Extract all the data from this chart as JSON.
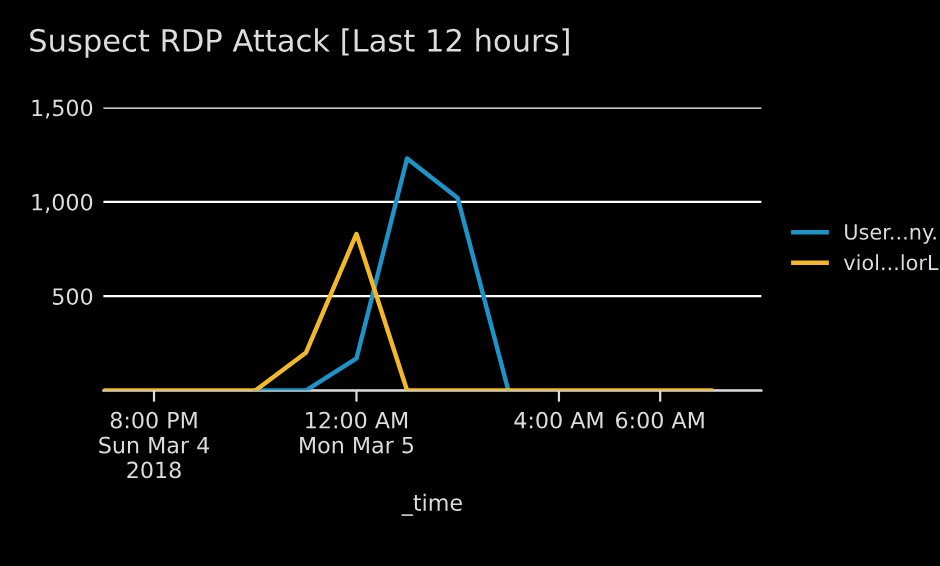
{
  "chart_data": {
    "type": "line",
    "title": "Suspect RDP Attack [Last 12 hours]",
    "xlabel": "_time",
    "x": [
      "2018-03-04T19:00",
      "2018-03-04T20:00",
      "2018-03-04T21:00",
      "2018-03-04T22:00",
      "2018-03-04T23:00",
      "2018-03-05T00:00",
      "2018-03-05T01:00",
      "2018-03-05T02:00",
      "2018-03-05T03:00",
      "2018-03-05T04:00",
      "2018-03-05T05:00",
      "2018-03-05T06:00",
      "2018-03-05T07:00"
    ],
    "series": [
      {
        "name": "User...ny.",
        "color": "#1e93c6",
        "values": [
          null,
          null,
          null,
          0,
          0,
          170,
          1230,
          1020,
          0,
          null,
          null,
          null,
          null
        ]
      },
      {
        "name": "viol...lorL",
        "color": "#f2b827",
        "values": [
          0,
          0,
          0,
          0,
          200,
          830,
          0,
          0,
          0,
          0,
          0,
          0,
          0
        ]
      }
    ],
    "xlim": [
      "2018-03-04T19:00",
      "2018-03-05T08:00"
    ],
    "xticks": [
      {
        "value": "2018-03-04T20:00",
        "label": "8:00 PM\nSun Mar 4\n2018"
      },
      {
        "value": "2018-03-05T00:00",
        "label": "12:00 AM\nMon Mar 5"
      },
      {
        "value": "2018-03-05T04:00",
        "label": "4:00 AM"
      },
      {
        "value": "2018-03-05T06:00",
        "label": "6:00 AM"
      }
    ],
    "ylim": [
      0,
      1500
    ],
    "yticks": [
      {
        "value": 0,
        "label": null
      },
      {
        "value": 500,
        "label": "500"
      },
      {
        "value": 1000,
        "label": "1,000"
      },
      {
        "value": 1500,
        "label": "1,500"
      }
    ],
    "grid": "y",
    "legend": "right",
    "marker": "none",
    "line_style": "solid"
  }
}
